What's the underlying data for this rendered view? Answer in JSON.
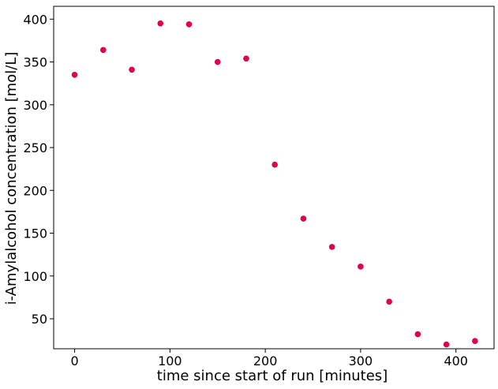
{
  "chart_data": {
    "type": "scatter",
    "xlabel": "time since start of run [minutes]",
    "ylabel": "i-Amylalcohol concentration [mol/L]",
    "xlim": [
      -22,
      440
    ],
    "ylim": [
      15,
      415
    ],
    "xticks": [
      0,
      100,
      200,
      300,
      400
    ],
    "yticks": [
      50,
      100,
      150,
      200,
      250,
      300,
      350,
      400
    ],
    "grid": false,
    "marker_color": "#e0004d",
    "series": [
      {
        "points": [
          {
            "x": 0,
            "y": 335
          },
          {
            "x": 30,
            "y": 364
          },
          {
            "x": 60,
            "y": 341
          },
          {
            "x": 90,
            "y": 395
          },
          {
            "x": 120,
            "y": 394
          },
          {
            "x": 150,
            "y": 350
          },
          {
            "x": 180,
            "y": 354
          },
          {
            "x": 210,
            "y": 230
          },
          {
            "x": 240,
            "y": 167
          },
          {
            "x": 270,
            "y": 134
          },
          {
            "x": 300,
            "y": 111
          },
          {
            "x": 330,
            "y": 70
          },
          {
            "x": 360,
            "y": 32
          },
          {
            "x": 390,
            "y": 20
          },
          {
            "x": 420,
            "y": 24
          }
        ]
      }
    ]
  }
}
